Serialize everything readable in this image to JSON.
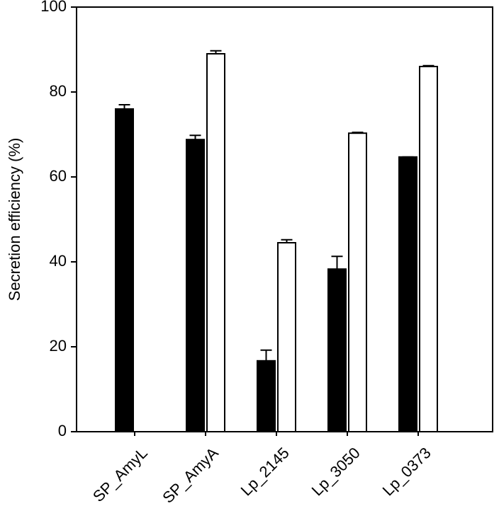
{
  "chart_data": {
    "type": "bar",
    "y_label": "Secretion efficiency (%)",
    "categories": [
      "SP_AmyL",
      "SP_AmyA",
      "Lp_2145",
      "Lp_3050",
      "Lp_0373"
    ],
    "series": [
      {
        "color": "#000000",
        "values": [
          76,
          68.8,
          16.7,
          38.3,
          64.7
        ],
        "errors": [
          1,
          1,
          2.5,
          3,
          0
        ]
      },
      {
        "color": "#ffffff",
        "values": [
          null,
          89,
          44.5,
          70.3,
          86
        ],
        "errors": [
          null,
          0.7,
          0.7,
          0.2,
          0.2
        ]
      }
    ],
    "ylim": [
      0,
      100
    ],
    "yticks": [
      0,
      20,
      40,
      60,
      80,
      100
    ]
  }
}
